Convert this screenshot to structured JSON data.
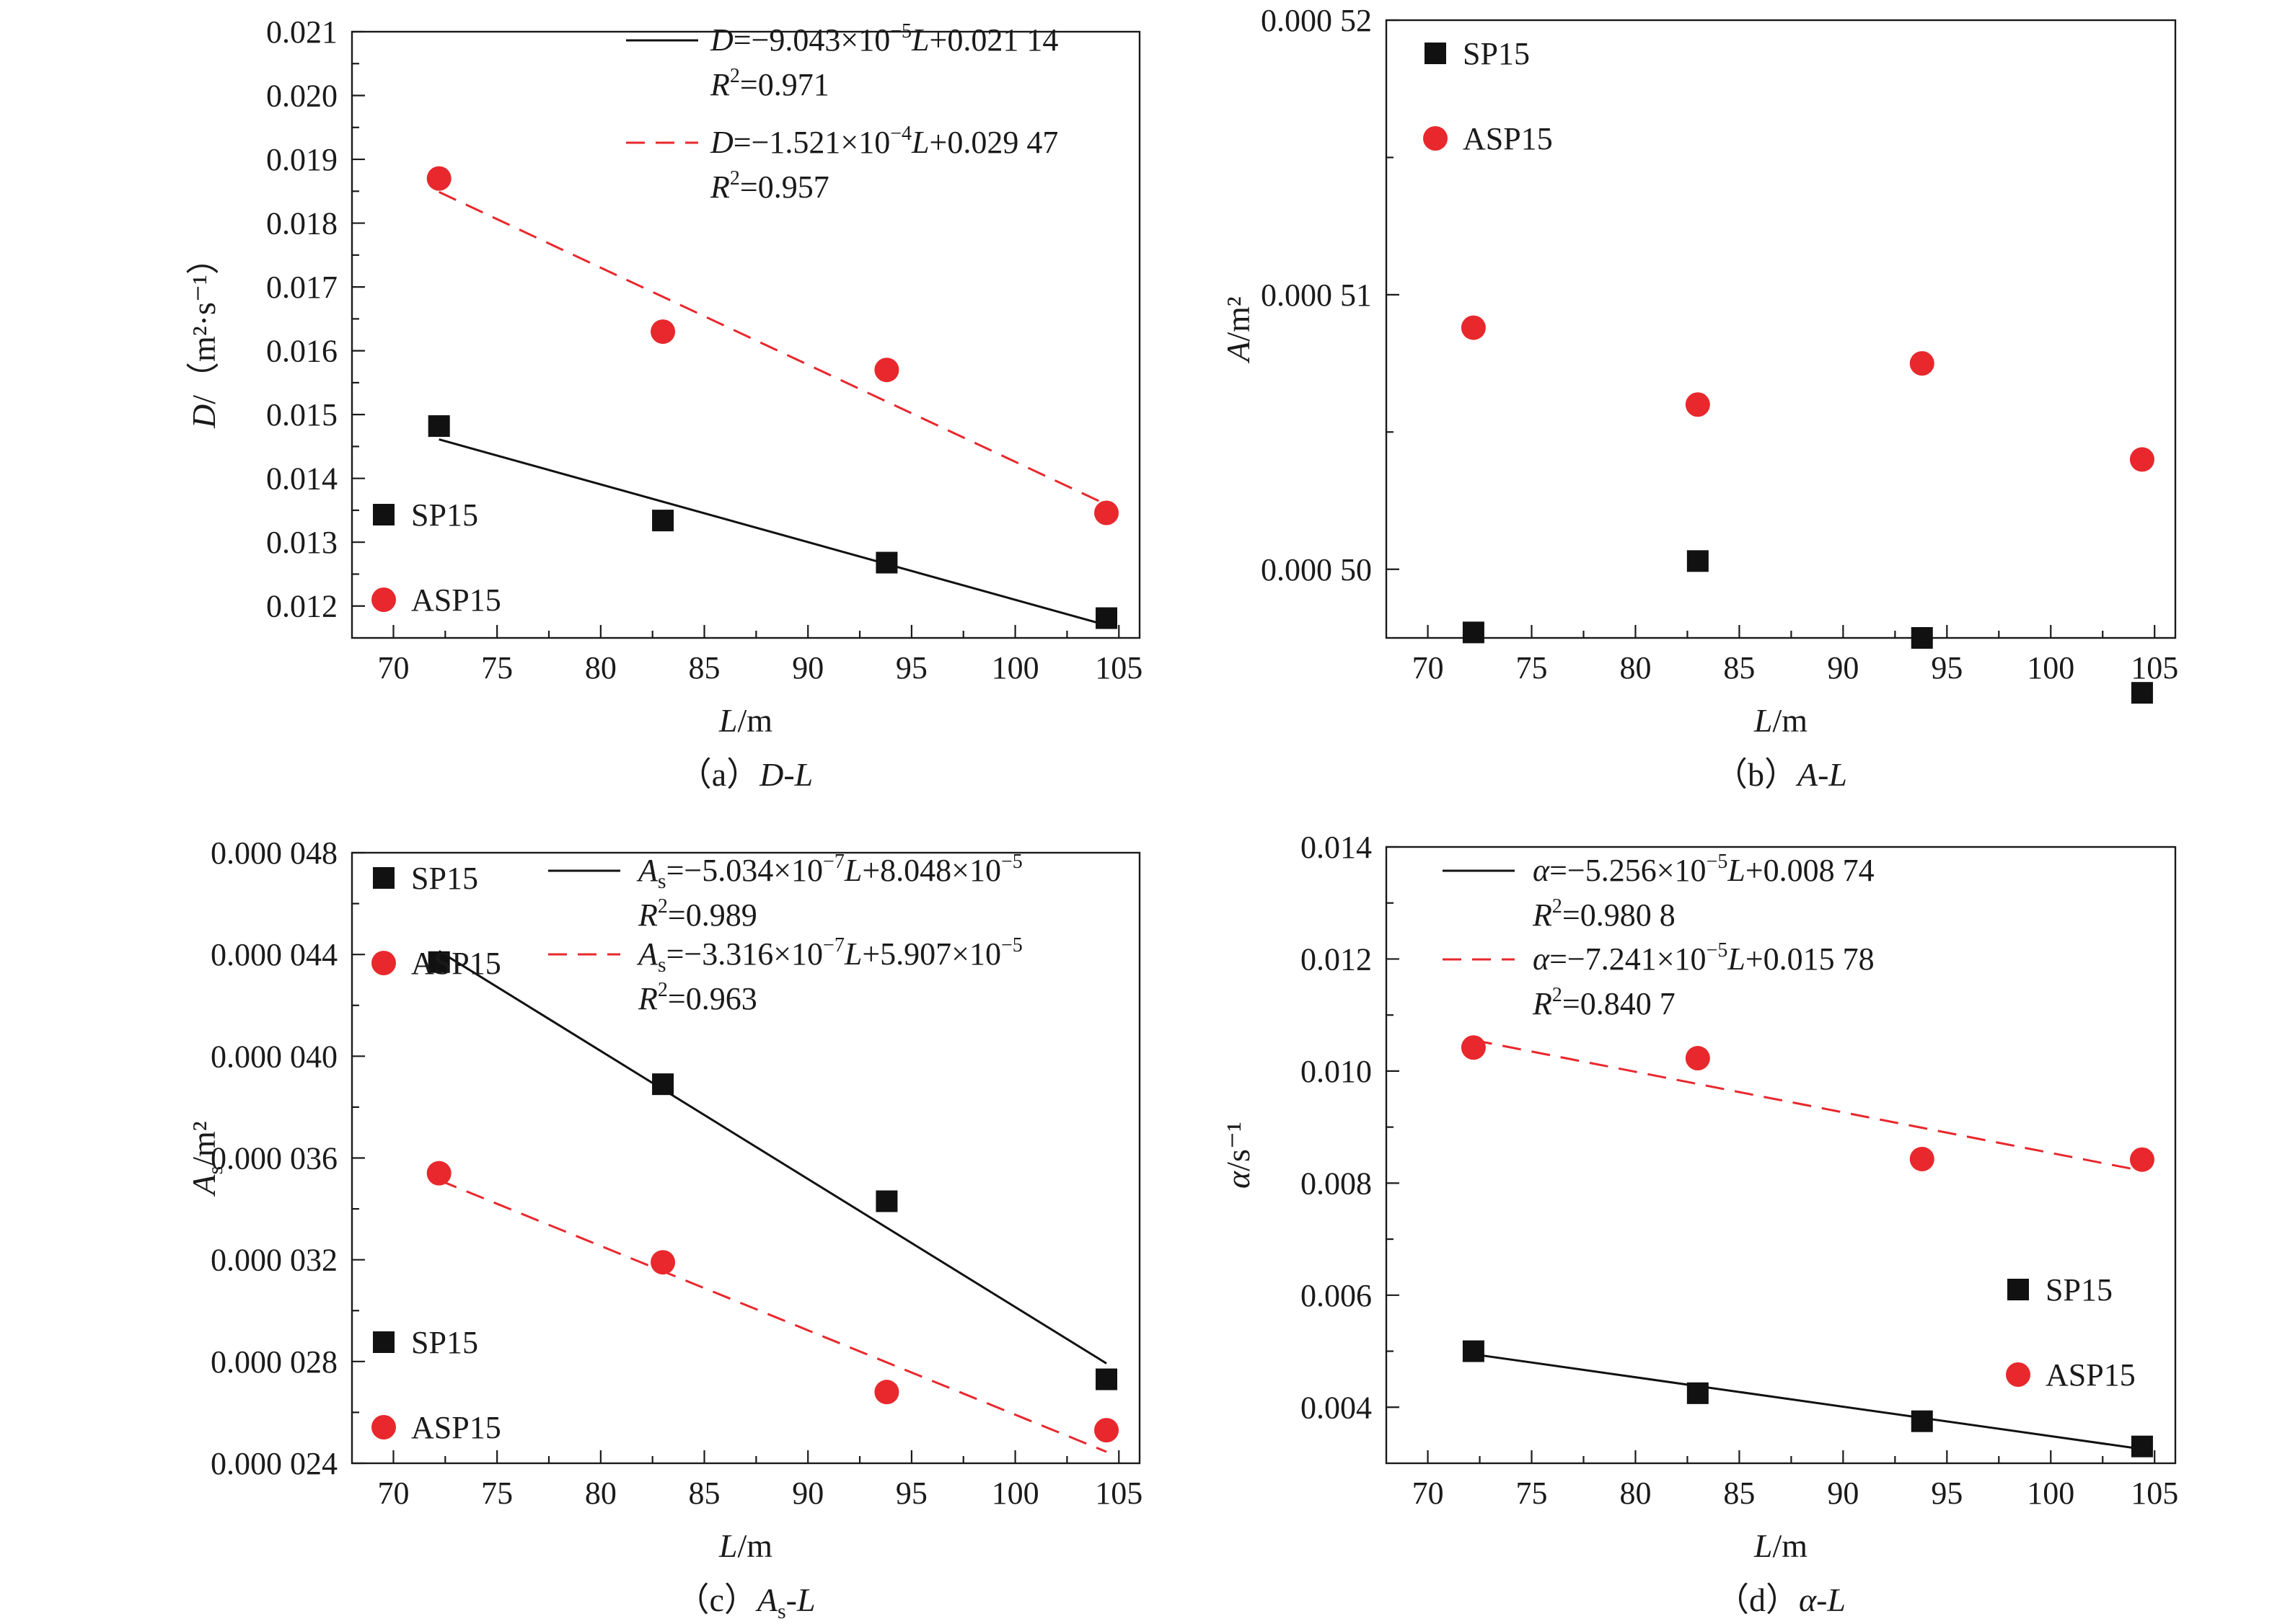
{
  "colors": {
    "sp15": "#111111",
    "asp15": "#e8282d",
    "axis": "#1a1a1a"
  },
  "chart_data": [
    {
      "id": "a",
      "type": "scatter",
      "caption": {
        "prefix": "（a）",
        "main": "D-L",
        "sub": "",
        "suffix": ""
      },
      "xlabel": {
        "var": "L",
        "sub": "",
        "unit": "/m"
      },
      "ylabel": {
        "var": "D",
        "unit": "/（m²·s⁻¹）"
      },
      "xlim": [
        68,
        106
      ],
      "ylim": [
        0.0115,
        0.021
      ],
      "xticks": [
        70,
        75,
        80,
        85,
        90,
        95,
        100,
        105
      ],
      "xtick_labels": [
        "70",
        "75",
        "80",
        "85",
        "90",
        "95",
        "100",
        "105"
      ],
      "yticks": [
        0.012,
        0.013,
        0.014,
        0.015,
        0.016,
        0.017,
        0.018,
        0.019,
        0.02,
        0.021
      ],
      "ytick_labels": [
        "0.012",
        "0.013",
        "0.014",
        "0.015",
        "0.016",
        "0.017",
        "0.018",
        "0.019",
        "0.020",
        "0.021"
      ],
      "series": [
        {
          "name": "SP15",
          "marker": "square",
          "x": [
            72.2,
            83.0,
            93.8,
            104.4
          ],
          "y": [
            0.01482,
            0.01334,
            0.01268,
            0.01181
          ]
        },
        {
          "name": "ASP15",
          "marker": "circle",
          "x": [
            72.2,
            83.0,
            93.8,
            104.4
          ],
          "y": [
            0.0187,
            0.0163,
            0.0157,
            0.01346
          ]
        }
      ],
      "fits": [
        {
          "series": "SP15",
          "style": "solid",
          "x": [
            72.2,
            104.4
          ],
          "slope": -9.043e-05,
          "intercept": 0.02114,
          "eq": {
            "v": "D",
            "vsub": "",
            "pre": "=−9.043×10",
            "exp": "−5",
            "mid": "",
            "x": "L",
            "post": "+0.021 14"
          },
          "r2": "=0.971"
        },
        {
          "series": "ASP15",
          "style": "dashed",
          "x": [
            72.2,
            104.4
          ],
          "slope": -0.0001521,
          "intercept": 0.02947,
          "eq": {
            "v": "D",
            "vsub": "",
            "pre": "=−1.521×10",
            "exp": "−4",
            "mid": "",
            "x": "L",
            "post": "+0.029 47"
          },
          "r2": "=0.957"
        }
      ],
      "legend": [
        {
          "series": "SP15",
          "label": "SP15"
        },
        {
          "series": "ASP15",
          "label": "ASP15"
        }
      ],
      "legend_position": "lower-left",
      "fit_legend_position": "top-right"
    },
    {
      "id": "b",
      "type": "scatter",
      "caption": {
        "prefix": "（b）",
        "main": "A-L",
        "sub": "",
        "suffix": ""
      },
      "xlabel": {
        "var": "L",
        "sub": "",
        "unit": "/m"
      },
      "ylabel": {
        "var": "A",
        "unit": "/m²"
      },
      "xlim": [
        68,
        106
      ],
      "ylim": [
        0.0004975,
        0.00052
      ],
      "xticks": [
        70,
        75,
        80,
        85,
        90,
        95,
        100,
        105
      ],
      "xtick_labels": [
        "70",
        "75",
        "80",
        "85",
        "90",
        "95",
        "100",
        "105"
      ],
      "yticks": [
        0.0005,
        0.00051,
        0.00052
      ],
      "ytick_labels": [
        "0.000 50",
        "0.000 51",
        "0.000 52"
      ],
      "series": [
        {
          "name": "SP15",
          "marker": "square",
          "x": [
            72.2,
            83.0,
            93.8,
            104.4
          ],
          "y": [
            0.0004977,
            0.0005003,
            0.0004975,
            0.0004955
          ]
        },
        {
          "name": "ASP15",
          "marker": "circle",
          "x": [
            72.2,
            83.0,
            93.8,
            104.4
          ],
          "y": [
            0.0005088,
            0.000506,
            0.0005075,
            0.000504
          ]
        }
      ],
      "fits": [],
      "legend": [
        {
          "series": "SP15",
          "label": "SP15"
        },
        {
          "series": "ASP15",
          "label": "ASP15"
        }
      ],
      "legend_position": "top-left"
    },
    {
      "id": "c",
      "type": "scatter",
      "caption": {
        "prefix": "（c）",
        "main": "A",
        "sub": "s",
        "suffix": "-L"
      },
      "xlabel": {
        "var": "L",
        "sub": "",
        "unit": "/m"
      },
      "ylabel": {
        "var": "A",
        "sub": "s",
        "unit": "/m²"
      },
      "xlim": [
        68,
        106
      ],
      "ylim": [
        2.4e-05,
        4.8e-05
      ],
      "xticks": [
        70,
        75,
        80,
        85,
        90,
        95,
        100,
        105
      ],
      "xtick_labels": [
        "70",
        "75",
        "80",
        "85",
        "90",
        "95",
        "100",
        "105"
      ],
      "yticks": [
        2.4e-05,
        2.8e-05,
        3.2e-05,
        3.6e-05,
        4e-05,
        4.4e-05,
        4.8e-05
      ],
      "ytick_labels": [
        "0.000 024",
        "0.000 028",
        "0.000 032",
        "0.000 036",
        "0.000 040",
        "0.000 044",
        "0.000 048"
      ],
      "series": [
        {
          "name": "SP15",
          "marker": "square",
          "x": [
            72.2,
            83.0,
            93.8,
            104.4
          ],
          "y": [
            4.37e-05,
            3.89e-05,
            3.43e-05,
            2.73e-05
          ]
        },
        {
          "name": "ASP15",
          "marker": "circle",
          "x": [
            72.2,
            83.0,
            93.8,
            104.4
          ],
          "y": [
            3.54e-05,
            3.19e-05,
            2.68e-05,
            2.53e-05
          ]
        }
      ],
      "fits": [
        {
          "series": "SP15",
          "style": "solid",
          "x": [
            72.2,
            104.4
          ],
          "slope": -5.034e-07,
          "intercept": 8.048e-05,
          "eq": {
            "v": "A",
            "vsub": "s",
            "pre": "=−5.034×10",
            "exp": "−7",
            "mid": "",
            "x": "L",
            "post": "+8.048×10",
            "post_exp": "−5"
          },
          "r2": "=0.989"
        },
        {
          "series": "ASP15",
          "style": "dashed",
          "x": [
            72.2,
            104.4
          ],
          "slope": -3.316e-07,
          "intercept": 5.907e-05,
          "eq": {
            "v": "A",
            "vsub": "s",
            "pre": "=−3.316×10",
            "exp": "−7",
            "mid": "",
            "x": "L",
            "post": "+5.907×10",
            "post_exp": "−5"
          },
          "r2": "=0.963"
        }
      ],
      "legend": [
        {
          "series": "SP15",
          "label": "SP15"
        },
        {
          "series": "ASP15",
          "label": "ASP15"
        }
      ],
      "legend_position": "top-left and lower-left",
      "fit_legend_position": "top-right"
    },
    {
      "id": "d",
      "type": "scatter",
      "caption": {
        "prefix": "（d）",
        "main": "α-L",
        "sub": "",
        "suffix": ""
      },
      "xlabel": {
        "var": "L",
        "sub": "",
        "unit": "/m"
      },
      "ylabel": {
        "var": "α",
        "unit": "/s⁻¹"
      },
      "xlim": [
        68,
        106
      ],
      "ylim": [
        0.003,
        0.014
      ],
      "xticks": [
        70,
        75,
        80,
        85,
        90,
        95,
        100,
        105
      ],
      "xtick_labels": [
        "70",
        "75",
        "80",
        "85",
        "90",
        "95",
        "100",
        "105"
      ],
      "yticks": [
        0.004,
        0.006,
        0.008,
        0.01,
        0.012,
        0.014
      ],
      "ytick_labels": [
        "0.004",
        "0.006",
        "0.008",
        "0.010",
        "0.012",
        "0.014"
      ],
      "series": [
        {
          "name": "SP15",
          "marker": "square",
          "x": [
            72.2,
            83.0,
            93.8,
            104.4
          ],
          "y": [
            0.005,
            0.00425,
            0.00375,
            0.0033
          ]
        },
        {
          "name": "ASP15",
          "marker": "circle",
          "x": [
            72.2,
            83.0,
            93.8,
            104.4
          ],
          "y": [
            0.01042,
            0.01023,
            0.00843,
            0.00842
          ]
        }
      ],
      "fits": [
        {
          "series": "SP15",
          "style": "solid",
          "x": [
            72.2,
            104.4
          ],
          "slope": -5.256e-05,
          "intercept": 0.00874,
          "eq": {
            "v": "α",
            "vsub": "",
            "pre": "=−5.256×10",
            "exp": "−5",
            "mid": "",
            "x": "L",
            "post": "+0.008 74"
          },
          "r2": "=0.980 8"
        },
        {
          "series": "ASP15",
          "style": "dashed",
          "x": [
            72.2,
            104.4
          ],
          "slope": -7.241e-05,
          "intercept": 0.01578,
          "eq": {
            "v": "α",
            "vsub": "",
            "pre": "=−7.241×10",
            "exp": "−5",
            "mid": "",
            "x": "L",
            "post": "+0.015 78"
          },
          "r2": "=0.840 7"
        }
      ],
      "legend": [
        {
          "series": "SP15",
          "label": "SP15"
        },
        {
          "series": "ASP15",
          "label": "ASP15"
        }
      ],
      "legend_position": "lower-right",
      "fit_legend_position": "top-left"
    }
  ]
}
